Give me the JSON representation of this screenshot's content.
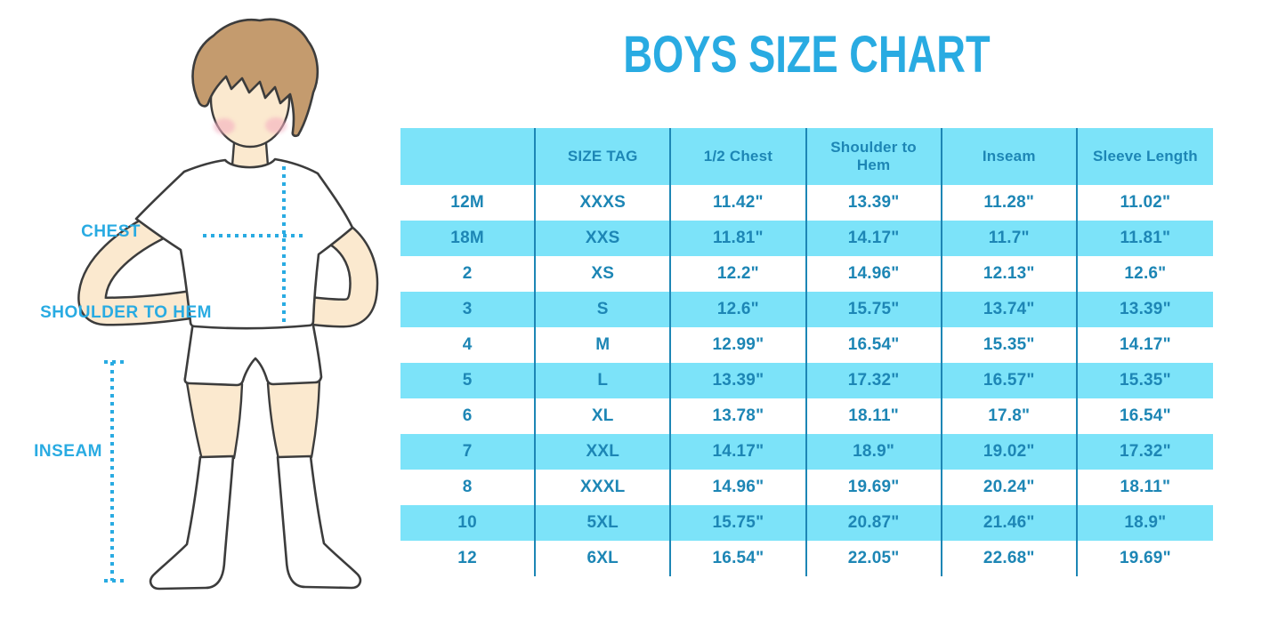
{
  "title": "BOYS SIZE CHART",
  "figure": {
    "labels": {
      "chest": "CHEST",
      "shoulder_to_hem": "SHOULDER TO HEM",
      "inseam": "INSEAM"
    }
  },
  "colors": {
    "accent": "#29abe2",
    "table-band": "#7ce3f9",
    "table-ink": "#1d86b5",
    "hair": "#c49b6e",
    "skin": "#fbe9cf",
    "cheek": "#f4afc0",
    "outline": "#3c3c3c"
  },
  "chart_data": {
    "type": "table",
    "title": "BOYS SIZE CHART",
    "columns": [
      "",
      "SIZE TAG",
      "1/2 Chest",
      "Shoulder to Hem",
      "Inseam",
      "Sleeve Length"
    ],
    "rows": [
      [
        "12M",
        "XXXS",
        "11.42\"",
        "13.39\"",
        "11.28\"",
        "11.02\""
      ],
      [
        "18M",
        "XXS",
        "11.81\"",
        "14.17\"",
        "11.7\"",
        "11.81\""
      ],
      [
        "2",
        "XS",
        "12.2\"",
        "14.96\"",
        "12.13\"",
        "12.6\""
      ],
      [
        "3",
        "S",
        "12.6\"",
        "15.75\"",
        "13.74\"",
        "13.39\""
      ],
      [
        "4",
        "M",
        "12.99\"",
        "16.54\"",
        "15.35\"",
        "14.17\""
      ],
      [
        "5",
        "L",
        "13.39\"",
        "17.32\"",
        "16.57\"",
        "15.35\""
      ],
      [
        "6",
        "XL",
        "13.78\"",
        "18.11\"",
        "17.8\"",
        "16.54\""
      ],
      [
        "7",
        "XXL",
        "14.17\"",
        "18.9\"",
        "19.02\"",
        "17.32\""
      ],
      [
        "8",
        "XXXL",
        "14.96\"",
        "19.69\"",
        "20.24\"",
        "18.11\""
      ],
      [
        "10",
        "5XL",
        "15.75\"",
        "20.87\"",
        "21.46\"",
        "18.9\""
      ],
      [
        "12",
        "6XL",
        "16.54\"",
        "22.05\"",
        "22.68\"",
        "19.69\""
      ]
    ],
    "layout": {
      "banded_rows": true,
      "first_body_row_background": "white",
      "grid": "vertical-dividers-only",
      "legend": "none"
    }
  }
}
